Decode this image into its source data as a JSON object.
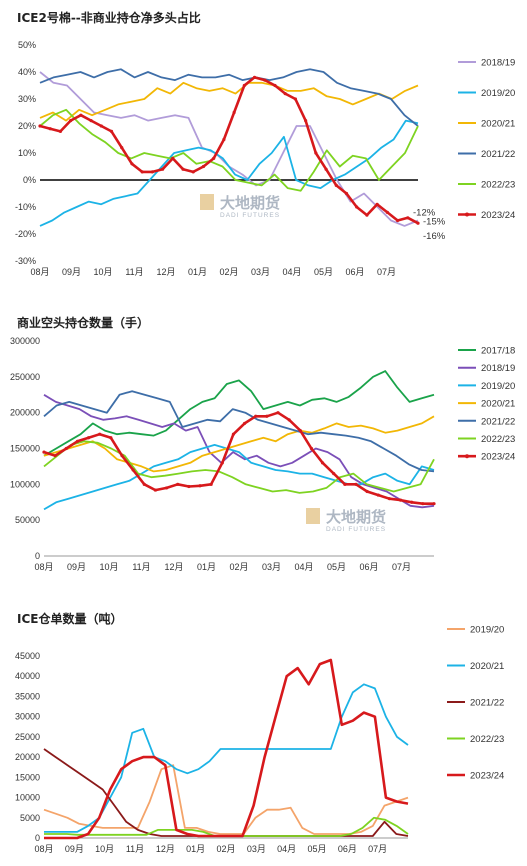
{
  "chart_data": [
    {
      "type": "line",
      "title": "ICE2号棉--非商业持仓净多头占比",
      "yticks": [
        "50%",
        "40%",
        "30%",
        "20%",
        "10%",
        "0%",
        "-10%",
        "-20%",
        "-30%"
      ],
      "ylim": [
        -0.3,
        0.5
      ],
      "x_labels": [
        "08月",
        "09月",
        "10月",
        "11月",
        "12月",
        "01月",
        "02月",
        "03月",
        "04月",
        "05月",
        "06月",
        "07月"
      ],
      "zero_line": true,
      "legend_position": "right",
      "annotations": [
        "-12%",
        "-15%",
        "-16%"
      ],
      "series": [
        {
          "name": "2018/19",
          "color": "#b19cd9",
          "values": [
            0.4,
            0.36,
            0.35,
            0.3,
            0.25,
            0.24,
            0.23,
            0.24,
            0.22,
            0.23,
            0.24,
            0.23,
            0.12,
            0.1,
            0.05,
            0.02,
            -0.02,
            0.0,
            0.1,
            0.2,
            0.2,
            0.1,
            0.0,
            -0.08,
            -0.05,
            -0.1,
            -0.15,
            -0.17,
            -0.15
          ]
        },
        {
          "name": "2019/20",
          "color": "#1cb3e6",
          "values": [
            -0.17,
            -0.15,
            -0.12,
            -0.1,
            -0.08,
            -0.09,
            -0.07,
            -0.06,
            -0.05,
            0.0,
            0.05,
            0.1,
            0.11,
            0.12,
            0.11,
            0.08,
            0.02,
            0.0,
            0.06,
            0.1,
            0.16,
            0.0,
            -0.02,
            -0.03,
            0.0,
            0.02,
            0.05,
            0.08,
            0.12,
            0.15,
            0.22,
            0.21
          ]
        },
        {
          "name": "2020/21",
          "color": "#f2b705",
          "values": [
            0.23,
            0.25,
            0.22,
            0.26,
            0.24,
            0.26,
            0.28,
            0.29,
            0.3,
            0.34,
            0.32,
            0.36,
            0.34,
            0.33,
            0.34,
            0.32,
            0.36,
            0.36,
            0.35,
            0.33,
            0.33,
            0.34,
            0.31,
            0.3,
            0.28,
            0.3,
            0.32,
            0.3,
            0.33,
            0.35
          ]
        },
        {
          "name": "2021/22",
          "color": "#3e6ea8",
          "values": [
            0.36,
            0.38,
            0.39,
            0.4,
            0.38,
            0.4,
            0.41,
            0.38,
            0.4,
            0.38,
            0.37,
            0.39,
            0.38,
            0.38,
            0.39,
            0.37,
            0.38,
            0.37,
            0.38,
            0.4,
            0.41,
            0.4,
            0.36,
            0.34,
            0.33,
            0.32,
            0.3,
            0.24,
            0.2
          ]
        },
        {
          "name": "2022/23",
          "color": "#7ed321",
          "values": [
            0.2,
            0.24,
            0.26,
            0.21,
            0.17,
            0.14,
            0.1,
            0.08,
            0.1,
            0.09,
            0.08,
            0.1,
            0.06,
            0.07,
            0.05,
            0.0,
            -0.01,
            -0.02,
            0.02,
            -0.03,
            -0.04,
            0.03,
            0.11,
            0.05,
            0.09,
            0.08,
            0.0,
            0.05,
            0.1,
            0.2
          ]
        },
        {
          "name": "2023/24",
          "color": "#d7191c",
          "values": [
            0.2,
            0.19,
            0.18,
            0.22,
            0.24,
            0.22,
            0.2,
            0.18,
            0.12,
            0.06,
            0.03,
            0.03,
            0.04,
            0.08,
            0.04,
            0.03,
            0.05,
            0.08,
            0.15,
            0.25,
            0.35,
            0.38,
            0.37,
            0.35,
            0.32,
            0.3,
            0.22,
            0.1,
            0.04,
            -0.02,
            -0.05,
            -0.1,
            -0.13,
            -0.09,
            -0.12,
            -0.15,
            -0.14,
            -0.16
          ]
        }
      ]
    },
    {
      "type": "line",
      "title": "商业空头持仓数量（手）",
      "yticks": [
        "300000",
        "250000",
        "200000",
        "150000",
        "100000",
        "50000",
        "0"
      ],
      "ylim": [
        0,
        300000
      ],
      "x_labels": [
        "08月",
        "09月",
        "10月",
        "11月",
        "12月",
        "01月",
        "02月",
        "03月",
        "04月",
        "05月",
        "06月",
        "07月"
      ],
      "legend_position": "right",
      "series": [
        {
          "name": "2017/18",
          "color": "#1aa34a",
          "values": [
            140000,
            150000,
            160000,
            170000,
            185000,
            175000,
            170000,
            172000,
            170000,
            168000,
            175000,
            190000,
            205000,
            215000,
            220000,
            240000,
            245000,
            230000,
            205000,
            210000,
            215000,
            210000,
            218000,
            220000,
            215000,
            222000,
            235000,
            250000,
            258000,
            235000,
            215000,
            220000,
            225000
          ]
        },
        {
          "name": "2018/19",
          "color": "#7b4fb8",
          "values": [
            225000,
            215000,
            210000,
            205000,
            195000,
            190000,
            192000,
            195000,
            190000,
            185000,
            180000,
            185000,
            175000,
            180000,
            145000,
            130000,
            145000,
            135000,
            140000,
            130000,
            125000,
            130000,
            140000,
            150000,
            145000,
            135000,
            110000,
            100000,
            95000,
            90000,
            80000,
            70000,
            68000,
            70000
          ]
        },
        {
          "name": "2019/20",
          "color": "#1cb3e6",
          "values": [
            65000,
            75000,
            80000,
            85000,
            90000,
            95000,
            100000,
            105000,
            115000,
            125000,
            130000,
            135000,
            145000,
            150000,
            155000,
            150000,
            145000,
            130000,
            125000,
            120000,
            118000,
            115000,
            115000,
            110000,
            105000,
            100000,
            100000,
            110000,
            115000,
            105000,
            100000,
            125000,
            120000
          ]
        },
        {
          "name": "2020/21",
          "color": "#f2b705",
          "values": [
            140000,
            145000,
            150000,
            155000,
            160000,
            150000,
            135000,
            130000,
            125000,
            118000,
            120000,
            125000,
            130000,
            140000,
            145000,
            150000,
            155000,
            160000,
            165000,
            160000,
            170000,
            175000,
            172000,
            178000,
            185000,
            180000,
            182000,
            178000,
            172000,
            175000,
            180000,
            185000,
            195000
          ]
        },
        {
          "name": "2021/22",
          "color": "#3e6ea8",
          "values": [
            195000,
            210000,
            215000,
            210000,
            205000,
            200000,
            225000,
            230000,
            225000,
            220000,
            215000,
            180000,
            185000,
            190000,
            188000,
            205000,
            200000,
            190000,
            185000,
            180000,
            175000,
            170000,
            172000,
            170000,
            168000,
            165000,
            160000,
            150000,
            140000,
            128000,
            120000,
            118000
          ]
        },
        {
          "name": "2022/23",
          "color": "#7ed321",
          "values": [
            125000,
            140000,
            155000,
            160000,
            158000,
            150000,
            140000,
            115000,
            110000,
            112000,
            115000,
            118000,
            120000,
            118000,
            110000,
            100000,
            95000,
            90000,
            92000,
            88000,
            90000,
            95000,
            110000,
            115000,
            100000,
            95000,
            90000,
            95000,
            100000,
            135000
          ]
        },
        {
          "name": "2023/24",
          "color": "#d7191c",
          "values": [
            145000,
            140000,
            150000,
            160000,
            165000,
            170000,
            165000,
            140000,
            120000,
            100000,
            92000,
            95000,
            100000,
            97000,
            98000,
            100000,
            130000,
            170000,
            185000,
            195000,
            195000,
            200000,
            190000,
            175000,
            150000,
            130000,
            115000,
            100000,
            100000,
            90000,
            85000,
            80000,
            78000,
            75000,
            73000,
            73000
          ]
        }
      ]
    },
    {
      "type": "line",
      "title": "ICE仓单数量（吨）",
      "yticks": [
        "45000",
        "40000",
        "35000",
        "30000",
        "25000",
        "20000",
        "15000",
        "10000",
        "5000",
        "0"
      ],
      "ylim": [
        0,
        45000
      ],
      "x_labels": [
        "08月",
        "09月",
        "10月",
        "11月",
        "12月",
        "01月",
        "02月",
        "03月",
        "04月",
        "05月",
        "06月",
        "07月"
      ],
      "legend_position": "right",
      "series": [
        {
          "name": "2019/20",
          "color": "#f4a46a",
          "values": [
            7000,
            6000,
            5000,
            3500,
            3000,
            2500,
            2500,
            2500,
            2500,
            9000,
            17000,
            18000,
            2500,
            2500,
            1500,
            1000,
            1000,
            1000,
            5000,
            7000,
            7000,
            7500,
            2500,
            1000,
            1000,
            1000,
            1000,
            1500,
            3000,
            8000,
            9000,
            10000
          ]
        },
        {
          "name": "2020/21",
          "color": "#1cb3e6",
          "values": [
            1500,
            1500,
            1500,
            1500,
            3000,
            5000,
            10000,
            15000,
            26000,
            27000,
            20000,
            19000,
            17000,
            16000,
            17000,
            19000,
            22000,
            22000,
            22000,
            22000,
            22000,
            22000,
            22000,
            22000,
            22000,
            22000,
            22000,
            30000,
            36000,
            38000,
            37000,
            30000,
            25000,
            23000
          ]
        },
        {
          "name": "2021/22",
          "color": "#8b1a1a",
          "values": [
            22000,
            20000,
            18000,
            16000,
            14000,
            12000,
            8000,
            4000,
            2000,
            1000,
            500,
            500,
            500,
            500,
            500,
            500,
            500,
            500,
            500,
            500,
            500,
            500,
            500,
            500,
            500,
            500,
            500,
            500,
            500,
            4000,
            1000,
            500
          ]
        },
        {
          "name": "2022/23",
          "color": "#7ed321",
          "values": [
            1000,
            1000,
            1000,
            800,
            800,
            800,
            800,
            800,
            800,
            800,
            2000,
            2000,
            2000,
            2000,
            1500,
            500,
            500,
            500,
            500,
            500,
            500,
            500,
            500,
            500,
            500,
            500,
            500,
            1000,
            2500,
            5000,
            4500,
            3000,
            1000
          ]
        },
        {
          "name": "2023/24",
          "color": "#d7191c",
          "values": [
            0,
            0,
            0,
            0,
            1000,
            5000,
            12000,
            17000,
            19000,
            20000,
            20000,
            18000,
            2000,
            1000,
            500,
            500,
            500,
            500,
            500,
            8000,
            20000,
            30000,
            40000,
            42000,
            38000,
            43000,
            44000,
            28000,
            29000,
            31000,
            30000,
            10000,
            9000,
            8500
          ]
        }
      ]
    }
  ]
}
